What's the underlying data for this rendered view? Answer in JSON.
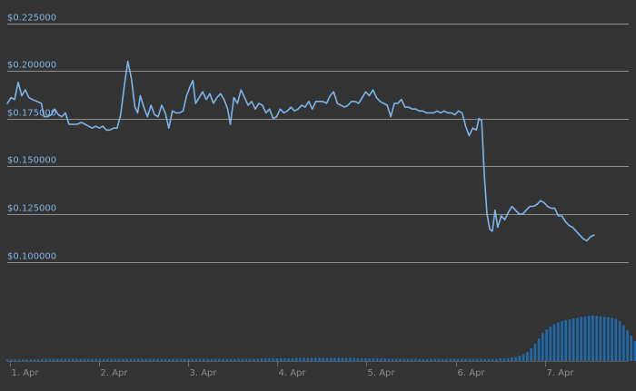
{
  "chart_data": {
    "type": "line",
    "title": "",
    "xlabel": "",
    "ylabel": "",
    "ylim": [
      0.1,
      0.225
    ],
    "y_ticks": [
      {
        "value": 0.1,
        "label": "$0.100000"
      },
      {
        "value": 0.125,
        "label": "$0.125000"
      },
      {
        "value": 0.15,
        "label": "$0.150000"
      },
      {
        "value": 0.175,
        "label": "$0.175000"
      },
      {
        "value": 0.2,
        "label": "$0.200000"
      },
      {
        "value": 0.225,
        "label": "$0.225000"
      }
    ],
    "x_ticks": [
      {
        "value": 0,
        "label": "1. Apr"
      },
      {
        "value": 1,
        "label": "2. Apr"
      },
      {
        "value": 2,
        "label": "3. Apr"
      },
      {
        "value": 3,
        "label": "4. Apr"
      },
      {
        "value": 4,
        "label": "5. Apr"
      },
      {
        "value": 5,
        "label": "6. Apr"
      },
      {
        "value": 6,
        "label": "7. Apr"
      }
    ],
    "xlim": [
      -0.13,
      6.86
    ],
    "grid": true,
    "colors": {
      "background": "#333333",
      "grid": "#8f8f8f",
      "line": "#7cb5ec",
      "volume": "#1f6aad",
      "y_label": "#7fb4e6",
      "x_label": "#8c8c8c"
    },
    "series": [
      {
        "values": [
          [
            -0.13,
            0.183
          ],
          [
            -0.09,
            0.186
          ],
          [
            -0.05,
            0.185
          ],
          [
            -0.01,
            0.194
          ],
          [
            0.03,
            0.187
          ],
          [
            0.07,
            0.19
          ],
          [
            0.11,
            0.186
          ],
          [
            0.15,
            0.185
          ],
          [
            0.2,
            0.184
          ],
          [
            0.25,
            0.183
          ],
          [
            0.28,
            0.176
          ],
          [
            0.32,
            0.176
          ],
          [
            0.36,
            0.177
          ],
          [
            0.4,
            0.18
          ],
          [
            0.44,
            0.177
          ],
          [
            0.48,
            0.176
          ],
          [
            0.52,
            0.178
          ],
          [
            0.56,
            0.172
          ],
          [
            0.6,
            0.172
          ],
          [
            0.65,
            0.172
          ],
          [
            0.7,
            0.173
          ],
          [
            0.74,
            0.172
          ],
          [
            0.78,
            0.171
          ],
          [
            0.82,
            0.17
          ],
          [
            0.86,
            0.171
          ],
          [
            0.9,
            0.17
          ],
          [
            0.94,
            0.171
          ],
          [
            0.98,
            0.169
          ],
          [
            1.02,
            0.169
          ],
          [
            1.06,
            0.17
          ],
          [
            1.1,
            0.17
          ],
          [
            1.14,
            0.177
          ],
          [
            1.18,
            0.192
          ],
          [
            1.22,
            0.205
          ],
          [
            1.26,
            0.196
          ],
          [
            1.3,
            0.181
          ],
          [
            1.33,
            0.178
          ],
          [
            1.36,
            0.187
          ],
          [
            1.4,
            0.181
          ],
          [
            1.44,
            0.176
          ],
          [
            1.48,
            0.182
          ],
          [
            1.52,
            0.177
          ],
          [
            1.56,
            0.176
          ],
          [
            1.6,
            0.182
          ],
          [
            1.64,
            0.178
          ],
          [
            1.68,
            0.17
          ],
          [
            1.72,
            0.179
          ],
          [
            1.76,
            0.178
          ],
          [
            1.8,
            0.178
          ],
          [
            1.84,
            0.179
          ],
          [
            1.88,
            0.187
          ],
          [
            1.92,
            0.192
          ],
          [
            1.95,
            0.195
          ],
          [
            1.98,
            0.183
          ],
          [
            2.02,
            0.186
          ],
          [
            2.06,
            0.189
          ],
          [
            2.1,
            0.185
          ],
          [
            2.14,
            0.188
          ],
          [
            2.18,
            0.183
          ],
          [
            2.22,
            0.186
          ],
          [
            2.26,
            0.188
          ],
          [
            2.3,
            0.185
          ],
          [
            2.34,
            0.18
          ],
          [
            2.37,
            0.172
          ],
          [
            2.41,
            0.186
          ],
          [
            2.45,
            0.183
          ],
          [
            2.49,
            0.19
          ],
          [
            2.53,
            0.186
          ],
          [
            2.57,
            0.182
          ],
          [
            2.61,
            0.184
          ],
          [
            2.65,
            0.18
          ],
          [
            2.69,
            0.183
          ],
          [
            2.73,
            0.182
          ],
          [
            2.77,
            0.178
          ],
          [
            2.81,
            0.18
          ],
          [
            2.85,
            0.175
          ],
          [
            2.89,
            0.176
          ],
          [
            2.93,
            0.18
          ],
          [
            2.97,
            0.178
          ],
          [
            3.01,
            0.179
          ],
          [
            3.05,
            0.181
          ],
          [
            3.09,
            0.179
          ],
          [
            3.13,
            0.18
          ],
          [
            3.17,
            0.182
          ],
          [
            3.21,
            0.181
          ],
          [
            3.25,
            0.184
          ],
          [
            3.29,
            0.18
          ],
          [
            3.33,
            0.184
          ],
          [
            3.37,
            0.184
          ],
          [
            3.41,
            0.184
          ],
          [
            3.45,
            0.183
          ],
          [
            3.49,
            0.187
          ],
          [
            3.53,
            0.189
          ],
          [
            3.57,
            0.183
          ],
          [
            3.61,
            0.182
          ],
          [
            3.65,
            0.181
          ],
          [
            3.69,
            0.182
          ],
          [
            3.73,
            0.184
          ],
          [
            3.77,
            0.184
          ],
          [
            3.81,
            0.183
          ],
          [
            3.85,
            0.186
          ],
          [
            3.89,
            0.189
          ],
          [
            3.93,
            0.187
          ],
          [
            3.97,
            0.19
          ],
          [
            4.01,
            0.186
          ],
          [
            4.05,
            0.184
          ],
          [
            4.09,
            0.183
          ],
          [
            4.13,
            0.182
          ],
          [
            4.17,
            0.176
          ],
          [
            4.21,
            0.183
          ],
          [
            4.25,
            0.183
          ],
          [
            4.29,
            0.185
          ],
          [
            4.33,
            0.181
          ],
          [
            4.37,
            0.181
          ],
          [
            4.41,
            0.18
          ],
          [
            4.45,
            0.18
          ],
          [
            4.49,
            0.179
          ],
          [
            4.53,
            0.179
          ],
          [
            4.57,
            0.178
          ],
          [
            4.61,
            0.178
          ],
          [
            4.65,
            0.178
          ],
          [
            4.69,
            0.179
          ],
          [
            4.73,
            0.178
          ],
          [
            4.77,
            0.179
          ],
          [
            4.81,
            0.178
          ],
          [
            4.85,
            0.178
          ],
          [
            4.89,
            0.177
          ],
          [
            4.93,
            0.179
          ],
          [
            4.97,
            0.178
          ],
          [
            5.01,
            0.171
          ],
          [
            5.05,
            0.166
          ],
          [
            5.09,
            0.17
          ],
          [
            5.13,
            0.169
          ],
          [
            5.16,
            0.175
          ],
          [
            5.19,
            0.174
          ],
          [
            5.22,
            0.145
          ],
          [
            5.25,
            0.125
          ],
          [
            5.28,
            0.117
          ],
          [
            5.31,
            0.116
          ],
          [
            5.34,
            0.127
          ],
          [
            5.37,
            0.118
          ],
          [
            5.41,
            0.124
          ],
          [
            5.45,
            0.122
          ],
          [
            5.49,
            0.126
          ],
          [
            5.53,
            0.129
          ],
          [
            5.57,
            0.127
          ],
          [
            5.61,
            0.125
          ],
          [
            5.65,
            0.125
          ],
          [
            5.69,
            0.127
          ],
          [
            5.73,
            0.129
          ],
          [
            5.77,
            0.129
          ],
          [
            5.81,
            0.13
          ],
          [
            5.85,
            0.132
          ],
          [
            5.89,
            0.131
          ],
          [
            5.93,
            0.129
          ],
          [
            5.97,
            0.128
          ],
          [
            6.01,
            0.128
          ],
          [
            6.05,
            0.124
          ],
          [
            6.09,
            0.124
          ],
          [
            6.13,
            0.121
          ],
          [
            6.17,
            0.119
          ],
          [
            6.21,
            0.118
          ],
          [
            6.25,
            0.116
          ],
          [
            6.29,
            0.114
          ],
          [
            6.33,
            0.112
          ],
          [
            6.37,
            0.111
          ],
          [
            6.41,
            0.113
          ],
          [
            6.45,
            0.114
          ]
        ]
      }
    ],
    "volume_bars": {
      "x_start": -0.13,
      "x_step": 0.0432,
      "relative_values": [
        0.03,
        0.03,
        0.03,
        0.03,
        0.03,
        0.03,
        0.03,
        0.03,
        0.03,
        0.04,
        0.04,
        0.04,
        0.04,
        0.04,
        0.04,
        0.04,
        0.04,
        0.04,
        0.04,
        0.04,
        0.04,
        0.04,
        0.04,
        0.04,
        0.04,
        0.04,
        0.04,
        0.04,
        0.04,
        0.04,
        0.04,
        0.04,
        0.04,
        0.04,
        0.04,
        0.04,
        0.04,
        0.04,
        0.04,
        0.04,
        0.04,
        0.04,
        0.04,
        0.04,
        0.04,
        0.04,
        0.04,
        0.04,
        0.04,
        0.04,
        0.04,
        0.04,
        0.04,
        0.04,
        0.04,
        0.04,
        0.04,
        0.04,
        0.04,
        0.04,
        0.04,
        0.04,
        0.04,
        0.04,
        0.04,
        0.04,
        0.05,
        0.05,
        0.05,
        0.05,
        0.05,
        0.05,
        0.05,
        0.05,
        0.05,
        0.06,
        0.06,
        0.06,
        0.06,
        0.06,
        0.06,
        0.06,
        0.06,
        0.06,
        0.06,
        0.06,
        0.06,
        0.06,
        0.06,
        0.06,
        0.06,
        0.05,
        0.05,
        0.05,
        0.05,
        0.05,
        0.05,
        0.05,
        0.05,
        0.04,
        0.04,
        0.04,
        0.04,
        0.04,
        0.04,
        0.04,
        0.04,
        0.04,
        0.04,
        0.04,
        0.04,
        0.04,
        0.04,
        0.04,
        0.04,
        0.04,
        0.04,
        0.04,
        0.04,
        0.04,
        0.04,
        0.04,
        0.04,
        0.04,
        0.04,
        0.04,
        0.04,
        0.04,
        0.05,
        0.05,
        0.05,
        0.07,
        0.08,
        0.1,
        0.13,
        0.17,
        0.24,
        0.33,
        0.43,
        0.53,
        0.6,
        0.66,
        0.7,
        0.73,
        0.76,
        0.78,
        0.79,
        0.81,
        0.82,
        0.84,
        0.85,
        0.86,
        0.87,
        0.86,
        0.85,
        0.84,
        0.83,
        0.82,
        0.8,
        0.76,
        0.68,
        0.58,
        0.48,
        0.38,
        0.32,
        0.28,
        0.25,
        0.22
      ]
    }
  }
}
